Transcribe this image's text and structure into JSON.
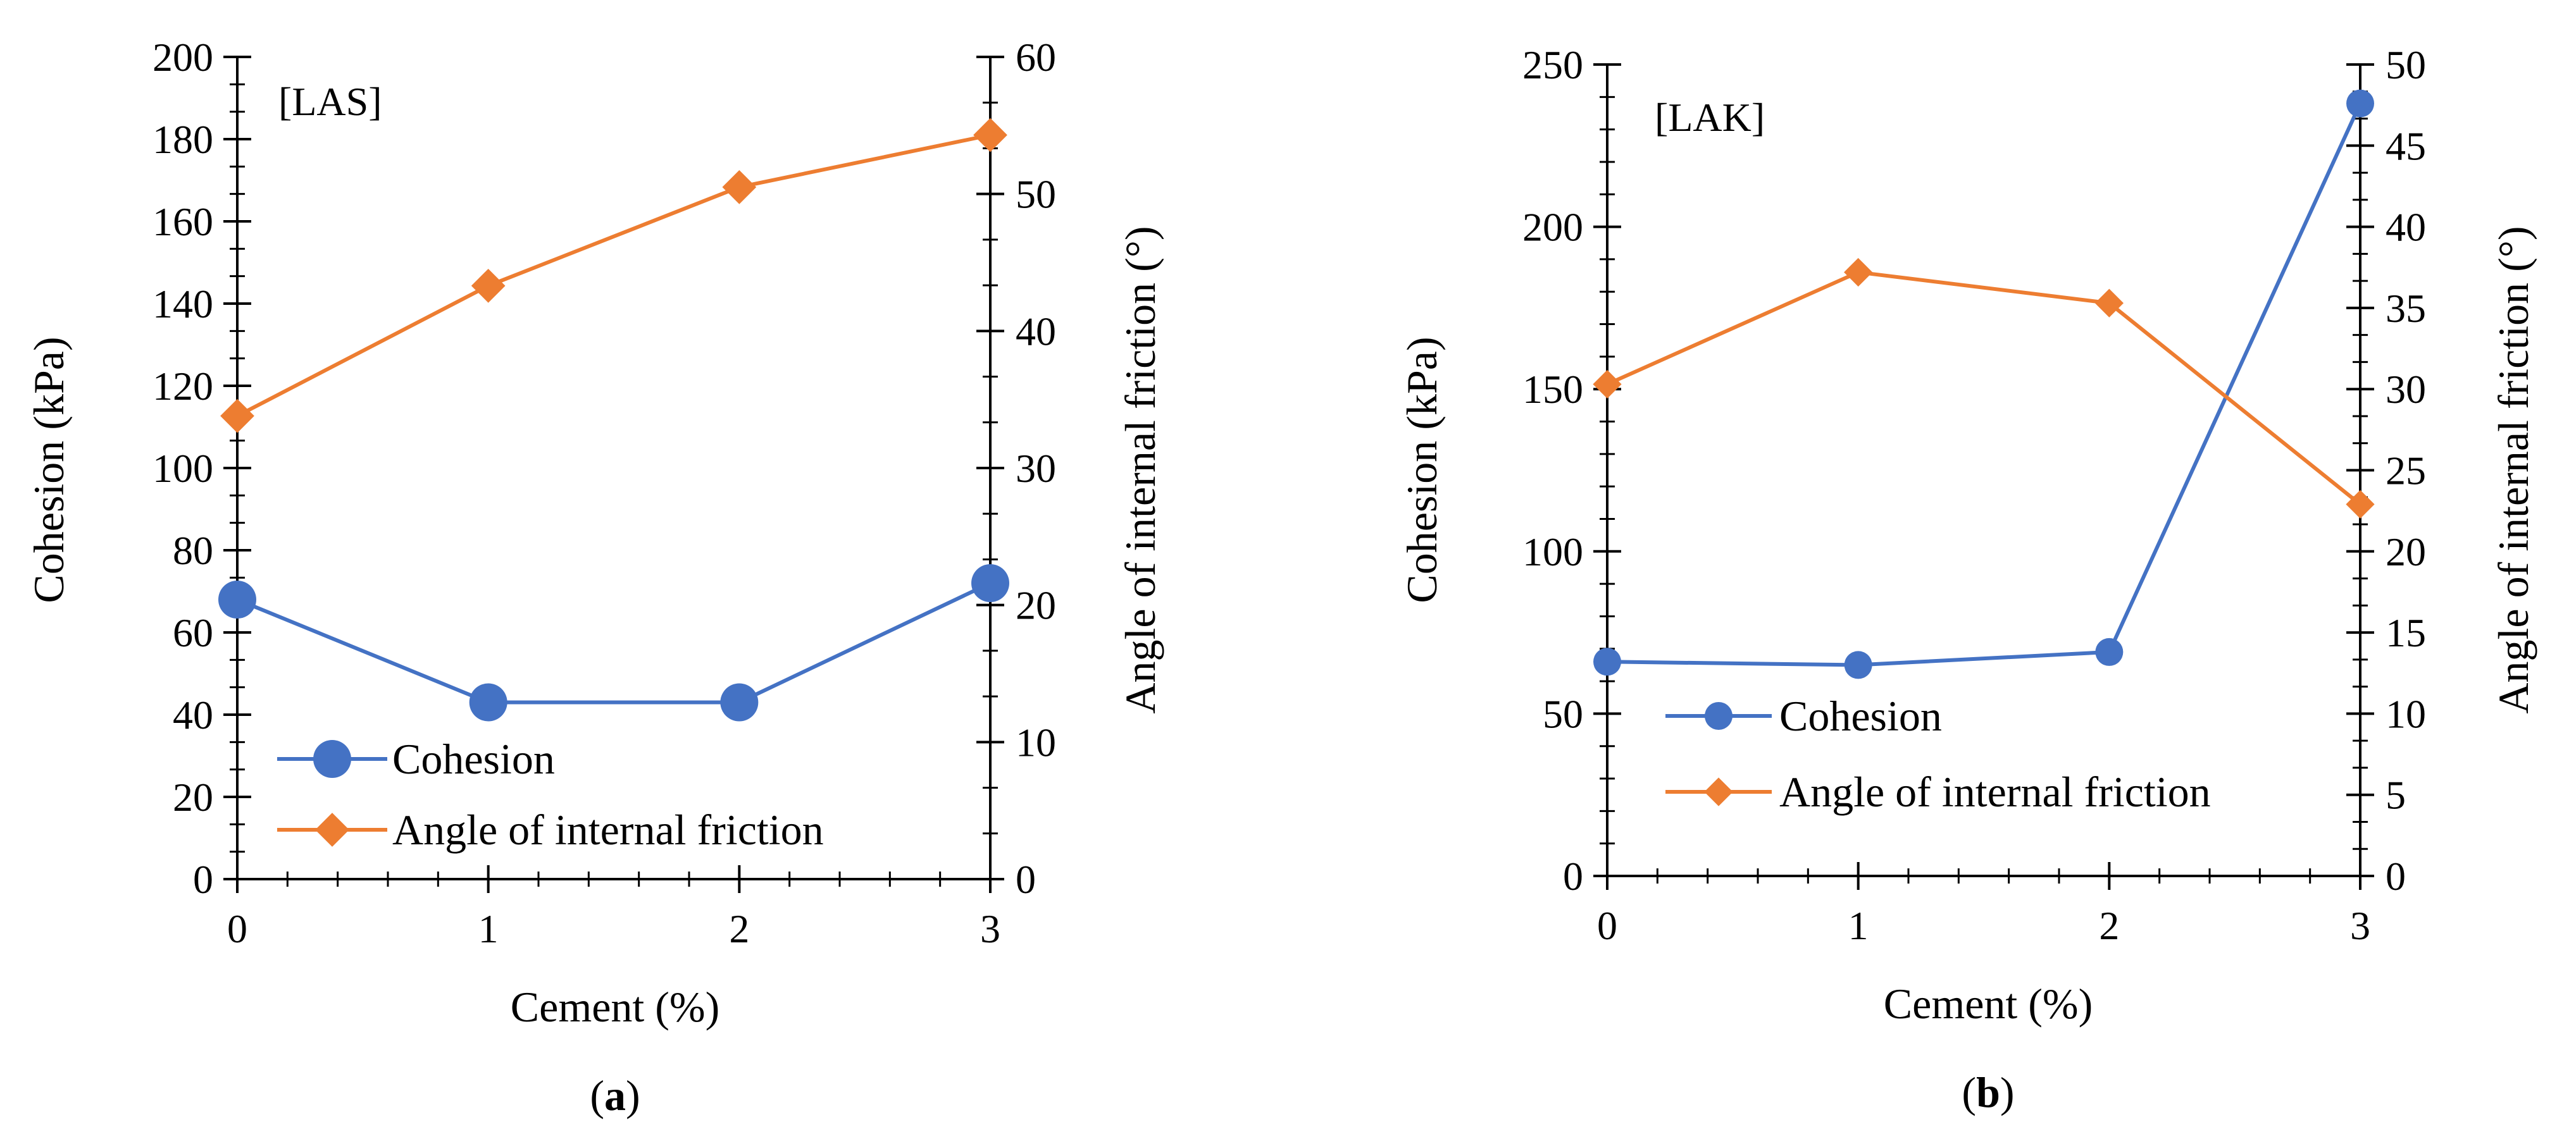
{
  "figure": {
    "panels": [
      {
        "caption_open": "(",
        "caption_letter": "a",
        "caption_close": ")"
      },
      {
        "caption_open": "(",
        "caption_letter": "b",
        "caption_close": ")"
      }
    ]
  },
  "chart_data": [
    {
      "type": "line",
      "tag": "[LAS]",
      "xlabel": "Cement (%)",
      "ylabel": "Cohesion (kPa)",
      "y2label": "Angle of internal friction (°)",
      "x": [
        0,
        1,
        2,
        3
      ],
      "xticks": [
        0,
        1,
        2,
        3
      ],
      "xlim": [
        0,
        3
      ],
      "ylim": [
        0,
        200
      ],
      "yticks": [
        0,
        20,
        40,
        60,
        80,
        100,
        120,
        140,
        160,
        180,
        200
      ],
      "y2lim": [
        0,
        60
      ],
      "y2ticks": [
        0,
        10,
        20,
        30,
        40,
        50,
        60
      ],
      "grid": false,
      "legend_position": "bottom-left",
      "series": [
        {
          "name": "Cohesion",
          "axis": "left",
          "marker": "circle",
          "color": "#4472C4",
          "values": [
            68,
            43,
            43,
            72
          ]
        },
        {
          "name": "Angle of internal friction",
          "axis": "right",
          "marker": "diamond",
          "color": "#ED7D31",
          "values": [
            33.8,
            43.3,
            50.5,
            54.3
          ]
        }
      ]
    },
    {
      "type": "line",
      "tag": "[LAK]",
      "xlabel": "Cement (%)",
      "ylabel": "Cohesion (kPa)",
      "y2label": "Angle of internal friction (°)",
      "x": [
        0,
        1,
        2,
        3
      ],
      "xticks": [
        0,
        1,
        2,
        3
      ],
      "xlim": [
        0,
        3
      ],
      "ylim": [
        0,
        250
      ],
      "yticks": [
        0,
        50,
        100,
        150,
        200,
        250
      ],
      "y2lim": [
        0,
        50
      ],
      "y2ticks": [
        0,
        5,
        10,
        15,
        20,
        25,
        30,
        35,
        40,
        45,
        50
      ],
      "grid": false,
      "legend_position": "bottom-left",
      "series": [
        {
          "name": "Cohesion",
          "axis": "left",
          "marker": "circle",
          "color": "#4472C4",
          "values": [
            66,
            65,
            69,
            238
          ]
        },
        {
          "name": "Angle of internal friction",
          "axis": "right",
          "marker": "diamond",
          "color": "#ED7D31",
          "values": [
            30.3,
            37.2,
            35.3,
            22.9
          ]
        }
      ]
    }
  ]
}
